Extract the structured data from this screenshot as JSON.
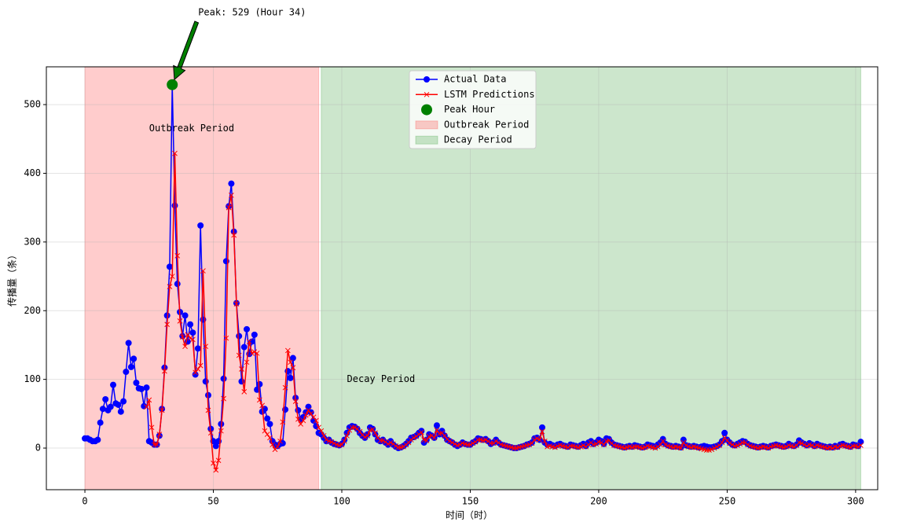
{
  "chart_data": {
    "type": "line",
    "annotation": "Peak: 529 (Hour 34)",
    "xlabel": "时间（时）",
    "ylabel": "传播量（条）",
    "xlim": [
      -15,
      308.6
    ],
    "ylim": [
      -60.6,
      555
    ],
    "xticks": [
      0,
      50,
      100,
      150,
      200,
      250,
      300
    ],
    "yticks": [
      0,
      100,
      200,
      300,
      400,
      500
    ],
    "grid": true,
    "legend": "upper center",
    "regions": [
      {
        "name": "Outbreak Period",
        "x0": 0,
        "x1": 91,
        "color": "#ff0000"
      },
      {
        "name": "Decay Period",
        "x0": 92,
        "x1": 302,
        "color": "#008000"
      }
    ],
    "peak": {
      "name": "Peak Hour",
      "x": 34,
      "value": 529,
      "color": "#008000"
    },
    "x": [
      0,
      1,
      2,
      3,
      4,
      5,
      6,
      7,
      8,
      9,
      10,
      11,
      12,
      13,
      14,
      15,
      16,
      17,
      18,
      19,
      20,
      21,
      22,
      23,
      24,
      25,
      26,
      27,
      28,
      29,
      30,
      31,
      32,
      33,
      34,
      35,
      36,
      37,
      38,
      39,
      40,
      41,
      42,
      43,
      44,
      45,
      46,
      47,
      48,
      49,
      50,
      51,
      52,
      53,
      54,
      55,
      56,
      57,
      58,
      59,
      60,
      61,
      62,
      63,
      64,
      65,
      66,
      67,
      68,
      69,
      70,
      71,
      72,
      73,
      74,
      75,
      76,
      77,
      78,
      79,
      80,
      81,
      82,
      83,
      84,
      85,
      86,
      87,
      88,
      89,
      90,
      91,
      92,
      93,
      94,
      95,
      96,
      97,
      98,
      99,
      100,
      101,
      102,
      103,
      104,
      105,
      106,
      107,
      108,
      109,
      110,
      111,
      112,
      113,
      114,
      115,
      116,
      117,
      118,
      119,
      120,
      121,
      122,
      123,
      124,
      125,
      126,
      127,
      128,
      129,
      130,
      131,
      132,
      133,
      134,
      135,
      136,
      137,
      138,
      139,
      140,
      141,
      142,
      143,
      144,
      145,
      146,
      147,
      148,
      149,
      150,
      151,
      152,
      153,
      154,
      155,
      156,
      157,
      158,
      159,
      160,
      161,
      162,
      163,
      164,
      165,
      166,
      167,
      168,
      169,
      170,
      171,
      172,
      173,
      174,
      175,
      176,
      177,
      178,
      179,
      180,
      181,
      182,
      183,
      184,
      185,
      186,
      187,
      188,
      189,
      190,
      191,
      192,
      193,
      194,
      195,
      196,
      197,
      198,
      199,
      200,
      201,
      202,
      203,
      204,
      205,
      206,
      207,
      208,
      209,
      210,
      211,
      212,
      213,
      214,
      215,
      216,
      217,
      218,
      219,
      220,
      221,
      222,
      223,
      224,
      225,
      226,
      227,
      228,
      229,
      230,
      231,
      232,
      233,
      234,
      235,
      236,
      237,
      238,
      239,
      240,
      241,
      242,
      243,
      244,
      245,
      246,
      247,
      248,
      249,
      250,
      251,
      252,
      253,
      254,
      255,
      256,
      257,
      258,
      259,
      260,
      261,
      262,
      263,
      264,
      265,
      266,
      267,
      268,
      269,
      270,
      271,
      272,
      273,
      274,
      275,
      276,
      277,
      278,
      279,
      280,
      281,
      282,
      283,
      284,
      285,
      286,
      287,
      288,
      289,
      290,
      291,
      292,
      293,
      294,
      295,
      296,
      297,
      298,
      299,
      300,
      301,
      302
    ],
    "series": [
      {
        "name": "Actual Data",
        "color": "#0000ff",
        "marker": "circle",
        "values": [
          14,
          14,
          12,
          10,
          10,
          12,
          37,
          57,
          71,
          55,
          60,
          92,
          65,
          63,
          53,
          68,
          111,
          153,
          118,
          130,
          95,
          87,
          86,
          61,
          88,
          10,
          8,
          5,
          5,
          18,
          57,
          117,
          193,
          264,
          529,
          353,
          239,
          198,
          163,
          193,
          155,
          180,
          168,
          107,
          145,
          324,
          187,
          97,
          77,
          28,
          10,
          3,
          10,
          35,
          101,
          272,
          352,
          385,
          315,
          211,
          163,
          97,
          147,
          173,
          137,
          155,
          165,
          85,
          93,
          53,
          57,
          43,
          35,
          10,
          5,
          3,
          6,
          7,
          56,
          112,
          102,
          131,
          73,
          55,
          42,
          45,
          52,
          60,
          52,
          40,
          32,
          22,
          20,
          15,
          10,
          12,
          8,
          6,
          5,
          4,
          6,
          12,
          22,
          30,
          32,
          31,
          28,
          22,
          18,
          15,
          20,
          30,
          28,
          20,
          12,
          10,
          12,
          8,
          5,
          10,
          5,
          2,
          0,
          1,
          3,
          6,
          10,
          15,
          16,
          18,
          22,
          25,
          8,
          12,
          20,
          18,
          15,
          33,
          20,
          25,
          18,
          12,
          10,
          8,
          5,
          3,
          5,
          8,
          6,
          5,
          5,
          8,
          10,
          14,
          13,
          12,
          13,
          10,
          6,
          8,
          12,
          8,
          5,
          4,
          3,
          2,
          1,
          0,
          0,
          1,
          2,
          3,
          5,
          6,
          8,
          14,
          15,
          12,
          30,
          8,
          5,
          6,
          4,
          3,
          5,
          6,
          4,
          3,
          2,
          5,
          4,
          3,
          2,
          4,
          6,
          3,
          8,
          10,
          6,
          8,
          12,
          10,
          6,
          14,
          13,
          8,
          5,
          4,
          3,
          2,
          1,
          2,
          3,
          2,
          4,
          3,
          2,
          1,
          2,
          5,
          4,
          3,
          2,
          5,
          8,
          13,
          6,
          4,
          3,
          2,
          3,
          2,
          1,
          12,
          4,
          3,
          2,
          3,
          2,
          1,
          2,
          3,
          2,
          1,
          1,
          2,
          3,
          5,
          10,
          22,
          12,
          8,
          5,
          4,
          6,
          8,
          10,
          9,
          6,
          4,
          3,
          2,
          1,
          2,
          3,
          2,
          1,
          3,
          4,
          5,
          4,
          3,
          2,
          3,
          6,
          4,
          3,
          5,
          11,
          8,
          6,
          4,
          7,
          5,
          3,
          6,
          4,
          3,
          2,
          1,
          2,
          1,
          3,
          2,
          5,
          6,
          4,
          3,
          2,
          5,
          4,
          3,
          9
        ]
      },
      {
        "name": "LSTM Predictions",
        "color": "#ff0000",
        "marker": "x",
        "values": [
          null,
          null,
          null,
          null,
          null,
          null,
          null,
          null,
          null,
          null,
          null,
          null,
          null,
          null,
          null,
          null,
          null,
          null,
          null,
          null,
          null,
          null,
          null,
          null,
          60,
          70,
          30,
          5,
          5,
          20,
          55,
          112,
          180,
          235,
          250,
          429,
          280,
          185,
          162,
          148,
          165,
          160,
          158,
          110,
          115,
          120,
          258,
          148,
          55,
          22,
          -22,
          -32,
          -18,
          25,
          72,
          160,
          350,
          368,
          310,
          210,
          135,
          115,
          82,
          125,
          155,
          138,
          140,
          138,
          70,
          62,
          25,
          20,
          15,
          5,
          -2,
          2,
          10,
          38,
          88,
          142,
          125,
          117,
          68,
          42,
          35,
          40,
          48,
          55,
          50,
          45,
          40,
          30,
          25,
          18,
          12,
          10,
          9,
          7,
          5,
          4,
          5,
          10,
          18,
          26,
          30,
          30,
          28,
          24,
          19,
          16,
          18,
          26,
          27,
          22,
          15,
          11,
          11,
          9,
          6,
          8,
          6,
          3,
          1,
          1,
          2,
          5,
          8,
          12,
          15,
          17,
          20,
          23,
          12,
          11,
          17,
          18,
          15,
          26,
          21,
          22,
          18,
          13,
          10,
          8,
          6,
          4,
          5,
          7,
          6,
          5,
          5,
          7,
          9,
          12,
          12,
          11,
          12,
          10,
          7,
          7,
          10,
          8,
          5,
          4,
          3,
          2,
          1,
          0,
          0,
          1,
          2,
          3,
          4,
          5,
          7,
          12,
          14,
          12,
          24,
          10,
          2,
          3,
          2,
          1,
          3,
          4,
          3,
          2,
          1,
          3,
          3,
          2,
          1,
          2,
          4,
          2,
          5,
          8,
          5,
          6,
          9,
          8,
          5,
          10,
          11,
          7,
          4,
          3,
          2,
          1,
          0,
          1,
          2,
          1,
          2,
          2,
          1,
          0,
          1,
          3,
          2,
          1,
          0,
          2,
          5,
          10,
          5,
          3,
          2,
          1,
          2,
          1,
          0,
          8,
          4,
          2,
          1,
          2,
          1,
          0,
          -1,
          -2,
          -3,
          -3,
          -2,
          0,
          2,
          4,
          8,
          15,
          11,
          7,
          5,
          3,
          4,
          6,
          8,
          8,
          5,
          3,
          2,
          1,
          0,
          1,
          2,
          1,
          0,
          2,
          3,
          4,
          3,
          2,
          1,
          2,
          4,
          3,
          2,
          4,
          8,
          7,
          5,
          3,
          5,
          4,
          2,
          4,
          3,
          2,
          1,
          0,
          1,
          0,
          2,
          1,
          3,
          4,
          3,
          2,
          1,
          3,
          3,
          2,
          4
        ]
      }
    ]
  }
}
